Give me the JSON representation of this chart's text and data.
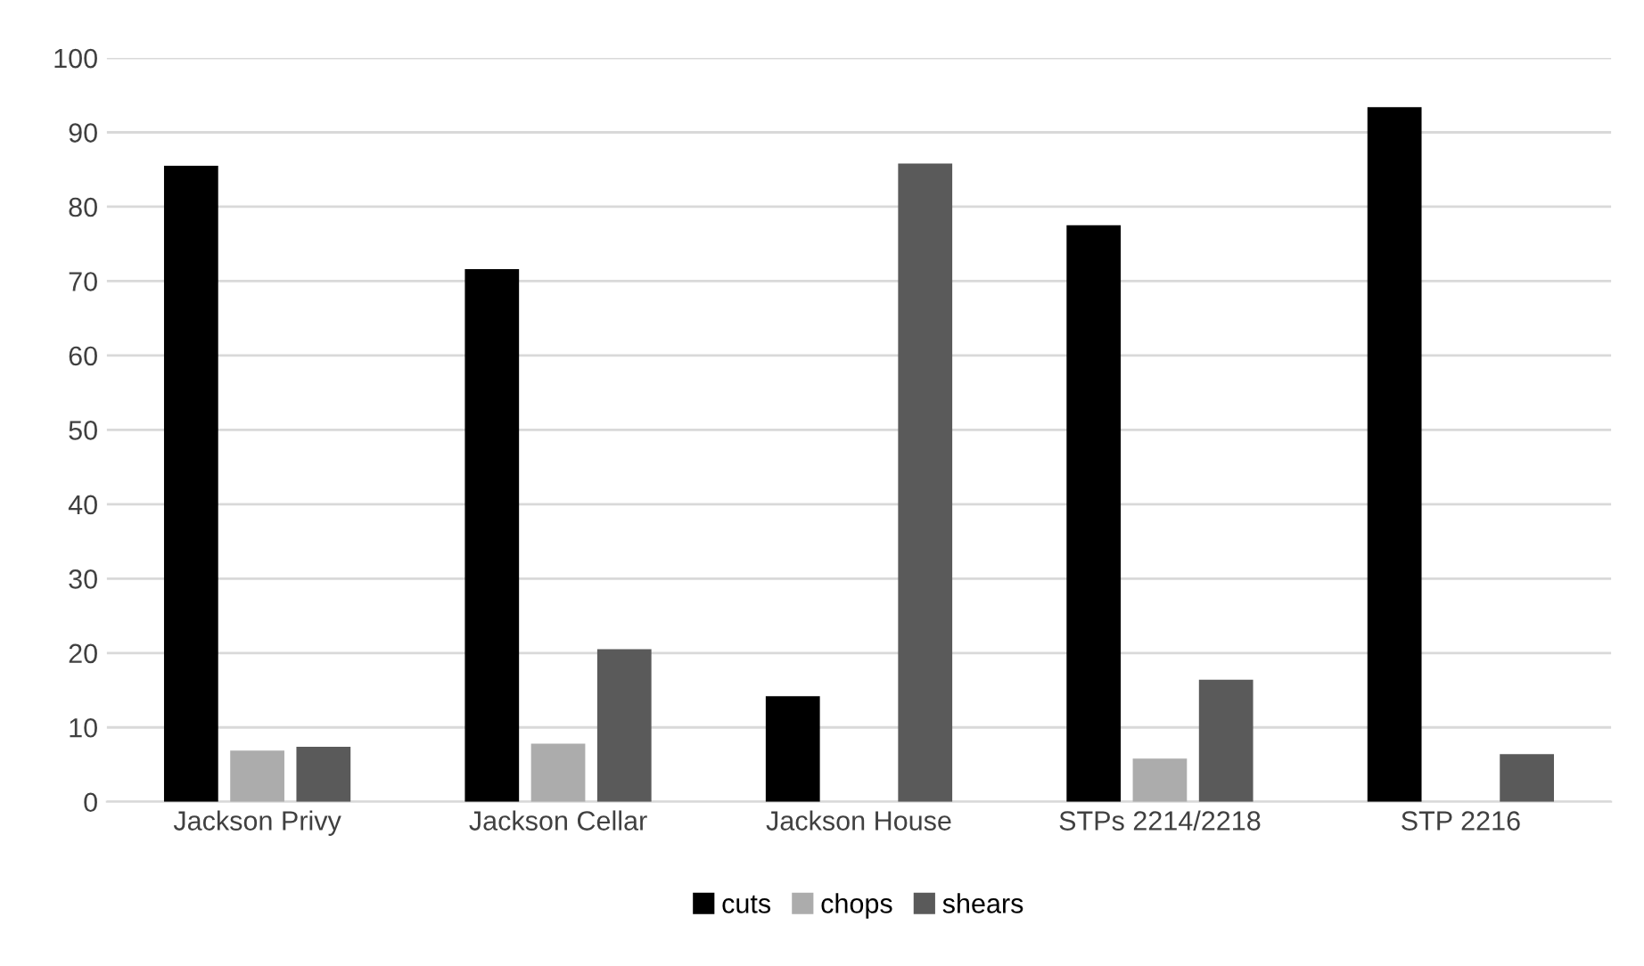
{
  "chart_data": {
    "type": "bar",
    "categories": [
      "Jackson Privy",
      "Jackson Cellar",
      "Jackson House",
      "STPs 2214/2218",
      "STP 2216"
    ],
    "series": [
      {
        "name": "cuts",
        "color": "#000000",
        "values": [
          85.5,
          71.6,
          14.2,
          77.5,
          93.4
        ]
      },
      {
        "name": "chops",
        "color": "#acacac",
        "values": [
          6.9,
          7.8,
          0,
          5.8,
          0
        ]
      },
      {
        "name": "shears",
        "color": "#5a5a5a",
        "values": [
          7.4,
          20.5,
          85.8,
          16.4,
          6.4
        ]
      }
    ],
    "ylim": [
      0,
      100
    ],
    "yticks": [
      0,
      10,
      20,
      30,
      40,
      50,
      60,
      70,
      80,
      90,
      100
    ],
    "grid": "y",
    "legend": "bottom"
  }
}
